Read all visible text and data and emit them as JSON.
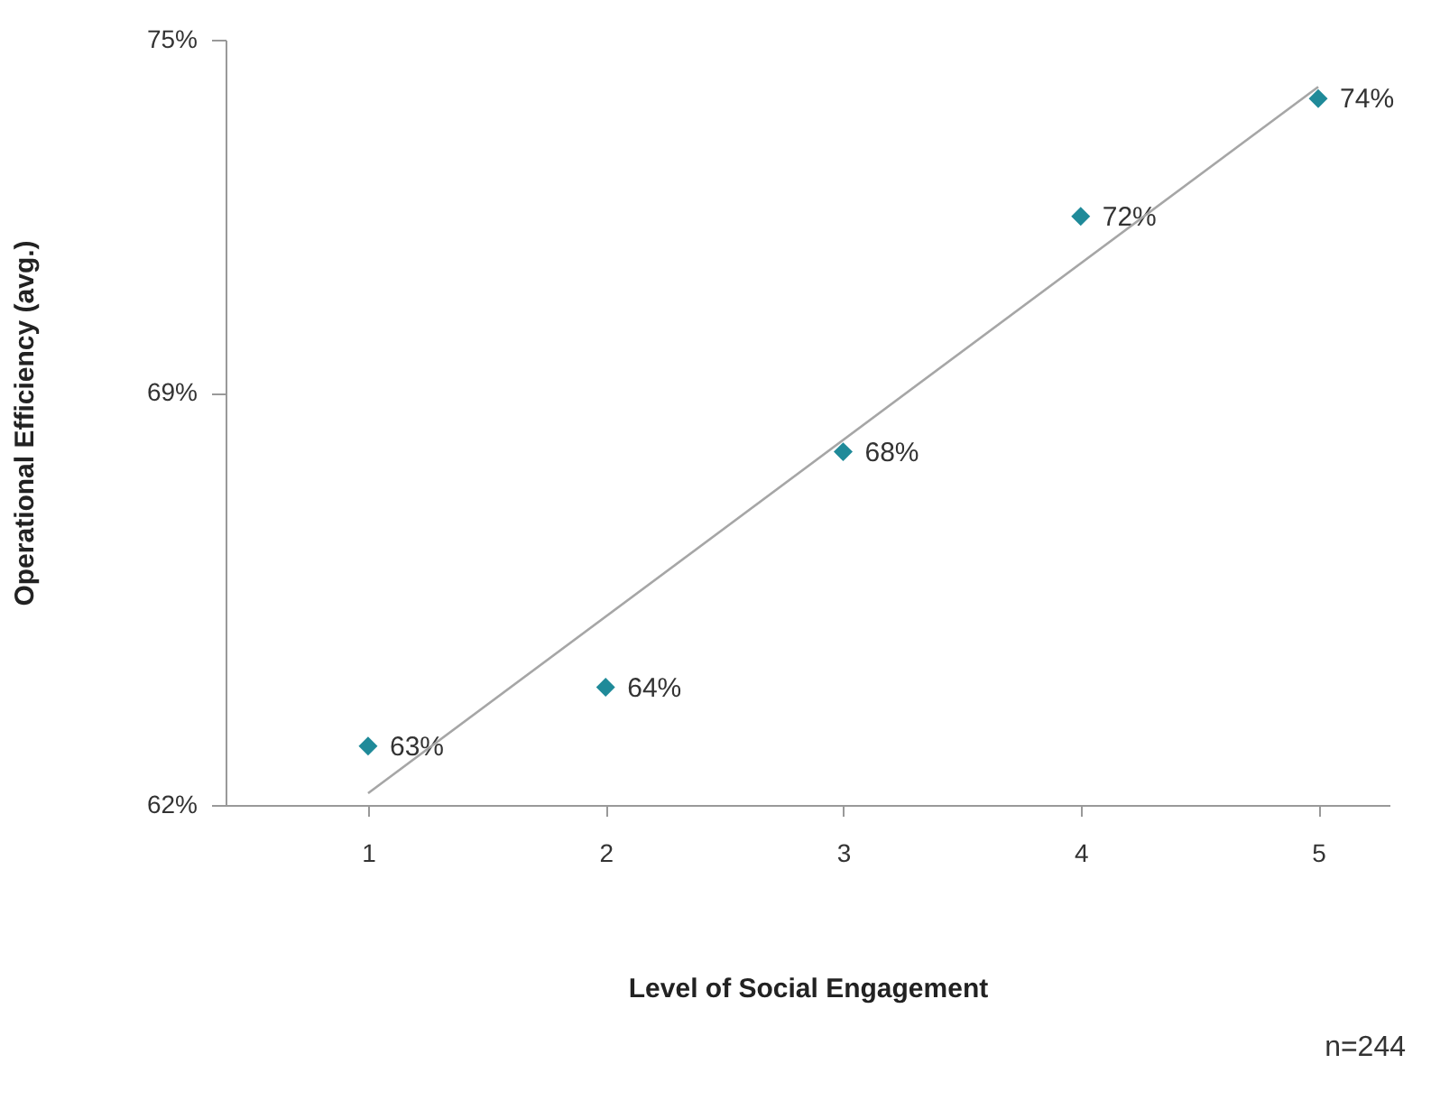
{
  "chart_data": {
    "type": "scatter",
    "xlabel": "Level of Social Engagement",
    "ylabel": "Operational Efficiency (avg.)",
    "x": [
      1,
      2,
      3,
      4,
      5
    ],
    "series": [
      {
        "color": "#1f8a99",
        "values": [
          63,
          64,
          68,
          72,
          74
        ],
        "value_labels": [
          "63%",
          "64%",
          "68%",
          "72%",
          "74%"
        ],
        "marker": "diamond"
      },
      {
        "type": "line",
        "color": "#a6a6a6",
        "x": [
          1,
          5
        ],
        "values": [
          62.2,
          74.2
        ],
        "line_style": "solid",
        "marker": "none"
      }
    ],
    "xlim": [
      0.4,
      5.3
    ],
    "xticks": [
      1,
      2,
      3,
      4,
      5
    ],
    "ylim": [
      62,
      75
    ],
    "yticks": [
      {
        "value": 62,
        "label": "62%"
      },
      {
        "value": 69,
        "label": "69%"
      },
      {
        "value": 75,
        "label": "75%"
      }
    ],
    "grid": false,
    "annotations": [
      "n=244"
    ]
  }
}
